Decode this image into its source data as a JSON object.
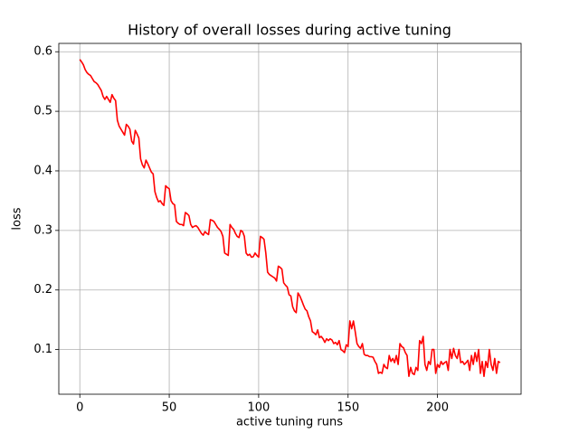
{
  "chart_data": {
    "type": "line",
    "title": "History of overall losses during active tuning",
    "xlabel": "active tuning runs",
    "ylabel": "loss",
    "color": "#ff0000",
    "grid": true,
    "xlim": [
      -11.75,
      246.75
    ],
    "ylim": [
      0.025,
      0.614
    ],
    "xticks": [
      0,
      50,
      100,
      150,
      200
    ],
    "yticks": [
      0.1,
      0.2,
      0.3,
      0.4,
      0.5,
      0.6
    ],
    "x": [
      0,
      1,
      2,
      3,
      4,
      5,
      6,
      7,
      8,
      9,
      10,
      11,
      12,
      13,
      14,
      15,
      16,
      17,
      18,
      19,
      20,
      21,
      22,
      23,
      24,
      25,
      26,
      27,
      28,
      29,
      30,
      31,
      32,
      33,
      34,
      35,
      36,
      37,
      38,
      39,
      40,
      41,
      42,
      43,
      44,
      45,
      46,
      47,
      48,
      49,
      50,
      51,
      52,
      53,
      54,
      55,
      56,
      57,
      58,
      59,
      60,
      61,
      62,
      63,
      64,
      65,
      66,
      67,
      68,
      69,
      70,
      71,
      72,
      73,
      74,
      75,
      76,
      77,
      78,
      79,
      80,
      81,
      82,
      83,
      84,
      85,
      86,
      87,
      88,
      89,
      90,
      91,
      92,
      93,
      94,
      95,
      96,
      97,
      98,
      99,
      100,
      101,
      102,
      103,
      104,
      105,
      106,
      107,
      108,
      109,
      110,
      111,
      112,
      113,
      114,
      115,
      116,
      117,
      118,
      119,
      120,
      121,
      122,
      123,
      124,
      125,
      126,
      127,
      128,
      129,
      130,
      131,
      132,
      133,
      134,
      135,
      136,
      137,
      138,
      139,
      140,
      141,
      142,
      143,
      144,
      145,
      146,
      147,
      148,
      149,
      150,
      151,
      152,
      153,
      154,
      155,
      156,
      157,
      158,
      159,
      160,
      161,
      162,
      163,
      164,
      165,
      166,
      167,
      168,
      169,
      170,
      171,
      172,
      173,
      174,
      175,
      176,
      177,
      178,
      179,
      180,
      181,
      182,
      183,
      184,
      185,
      186,
      187,
      188,
      189,
      190,
      191,
      192,
      193,
      194,
      195,
      196,
      197,
      198,
      199,
      200,
      201,
      202,
      203,
      204,
      205,
      206,
      207,
      208,
      209,
      210,
      211,
      212,
      213,
      214,
      215,
      216,
      217,
      218,
      219,
      220,
      221,
      222,
      223,
      224,
      225,
      226,
      227,
      228,
      229,
      230,
      231,
      232,
      233,
      234,
      235
    ],
    "values": [
      0.587,
      0.583,
      0.578,
      0.57,
      0.565,
      0.562,
      0.56,
      0.555,
      0.55,
      0.548,
      0.545,
      0.54,
      0.535,
      0.525,
      0.52,
      0.525,
      0.52,
      0.515,
      0.528,
      0.522,
      0.518,
      0.485,
      0.475,
      0.47,
      0.465,
      0.46,
      0.478,
      0.475,
      0.47,
      0.45,
      0.445,
      0.468,
      0.462,
      0.455,
      0.42,
      0.41,
      0.405,
      0.418,
      0.412,
      0.405,
      0.398,
      0.395,
      0.365,
      0.355,
      0.348,
      0.35,
      0.345,
      0.342,
      0.375,
      0.372,
      0.37,
      0.35,
      0.345,
      0.343,
      0.315,
      0.312,
      0.31,
      0.31,
      0.308,
      0.33,
      0.328,
      0.325,
      0.31,
      0.305,
      0.307,
      0.308,
      0.305,
      0.3,
      0.295,
      0.292,
      0.298,
      0.295,
      0.293,
      0.318,
      0.317,
      0.315,
      0.31,
      0.305,
      0.302,
      0.298,
      0.29,
      0.262,
      0.26,
      0.258,
      0.31,
      0.305,
      0.302,
      0.295,
      0.29,
      0.288,
      0.3,
      0.298,
      0.29,
      0.262,
      0.258,
      0.26,
      0.255,
      0.256,
      0.262,
      0.258,
      0.255,
      0.29,
      0.288,
      0.285,
      0.262,
      0.23,
      0.226,
      0.224,
      0.222,
      0.22,
      0.215,
      0.24,
      0.238,
      0.235,
      0.212,
      0.208,
      0.205,
      0.192,
      0.19,
      0.172,
      0.165,
      0.162,
      0.195,
      0.19,
      0.183,
      0.175,
      0.168,
      0.165,
      0.155,
      0.148,
      0.13,
      0.128,
      0.125,
      0.133,
      0.12,
      0.122,
      0.118,
      0.112,
      0.118,
      0.115,
      0.118,
      0.116,
      0.11,
      0.112,
      0.108,
      0.115,
      0.1,
      0.098,
      0.095,
      0.108,
      0.105,
      0.148,
      0.135,
      0.148,
      0.13,
      0.11,
      0.105,
      0.102,
      0.11,
      0.092,
      0.09,
      0.09,
      0.088,
      0.088,
      0.087,
      0.08,
      0.075,
      0.06,
      0.062,
      0.06,
      0.075,
      0.07,
      0.068,
      0.09,
      0.08,
      0.085,
      0.078,
      0.09,
      0.075,
      0.11,
      0.105,
      0.103,
      0.095,
      0.09,
      0.055,
      0.07,
      0.06,
      0.058,
      0.07,
      0.065,
      0.115,
      0.11,
      0.122,
      0.075,
      0.065,
      0.08,
      0.075,
      0.1,
      0.1,
      0.06,
      0.075,
      0.07,
      0.08,
      0.075,
      0.078,
      0.08,
      0.065,
      0.1,
      0.085,
      0.102,
      0.09,
      0.085,
      0.1,
      0.078,
      0.08,
      0.075,
      0.078,
      0.082,
      0.065,
      0.09,
      0.075,
      0.095,
      0.08,
      0.1,
      0.06,
      0.08,
      0.055,
      0.08,
      0.07,
      0.1,
      0.075,
      0.065,
      0.085,
      0.06,
      0.08,
      0.078
    ]
  }
}
